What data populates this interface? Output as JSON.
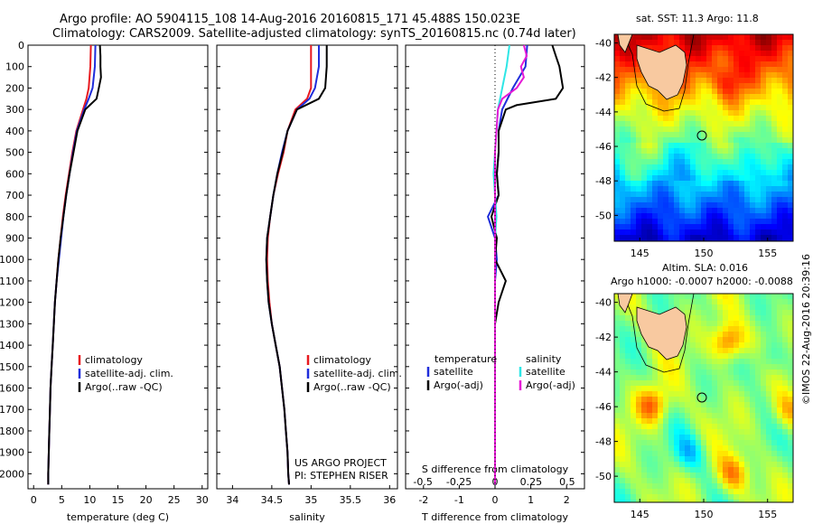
{
  "header": {
    "line1": "Argo profile: AO 5904115_108 14-Aug-2016 20160815_171 45.488S 150.023E",
    "line2": "Climatology: CARS2009. Satellite-adjusted climatology: synTS_20160815.nc (0.74d later)"
  },
  "credit": "©IMOS 22-Aug-2016 20:39:16",
  "colors": {
    "climatology": "#e8191f",
    "satellite": "#1f2ddb",
    "argo": "#000000",
    "sat_s": "#2ee6e6",
    "argo_s": "#e619d6"
  },
  "chart_data": [
    {
      "type": "line",
      "name": "temperature-profile",
      "xlabel": "temperature (deg C)",
      "ylabel": "",
      "xlim": [
        -1,
        31
      ],
      "ylim": [
        2070,
        0
      ],
      "xticks": [
        "0",
        "5",
        "10",
        "15",
        "20",
        "25",
        "30"
      ],
      "yticks": [
        "0",
        "100",
        "200",
        "300",
        "400",
        "500",
        "600",
        "700",
        "800",
        "900",
        "1000",
        "1100",
        "1200",
        "1300",
        "1400",
        "1500",
        "1600",
        "1700",
        "1800",
        "1900",
        "2000"
      ],
      "legend": [
        "climatology",
        "satellite-adj. clim.",
        "Argo(..raw -QC)"
      ],
      "series": [
        {
          "name": "climatology",
          "depth": [
            0,
            100,
            200,
            250,
            300,
            400,
            500,
            600,
            700,
            800,
            900,
            1000,
            1100,
            1200,
            1300,
            1400,
            1500,
            1600,
            1700,
            1800,
            1900,
            2000,
            2050
          ],
          "values": [
            10.2,
            10.1,
            9.8,
            9.4,
            8.8,
            7.6,
            6.9,
            6.3,
            5.7,
            5.2,
            4.8,
            4.4,
            4.1,
            3.8,
            3.6,
            3.4,
            3.2,
            3.0,
            2.9,
            2.8,
            2.7,
            2.6,
            2.6
          ]
        },
        {
          "name": "satellite-adj. clim.",
          "depth": [
            0,
            100,
            200,
            250,
            300,
            400,
            500,
            600,
            700,
            800,
            900,
            1000,
            1100,
            1200,
            1300,
            1400,
            1500,
            1600,
            1700,
            1800,
            1900,
            2000,
            2050
          ],
          "values": [
            11.0,
            10.9,
            10.5,
            9.8,
            9.0,
            7.7,
            7.0,
            6.4,
            5.8,
            5.3,
            4.9,
            4.5,
            4.1,
            3.8,
            3.6,
            3.4,
            3.2,
            3.0,
            2.9,
            2.8,
            2.7,
            2.6,
            2.6
          ]
        },
        {
          "name": "Argo(..raw -QC)",
          "depth": [
            0,
            50,
            100,
            150,
            200,
            250,
            280,
            300,
            400,
            500,
            600,
            700,
            800,
            900,
            1000,
            1100,
            1200,
            1300,
            1400,
            1500,
            1600,
            1700,
            1800,
            1900,
            2000,
            2050
          ],
          "values": [
            11.8,
            11.9,
            11.9,
            12.0,
            11.6,
            11.2,
            10.0,
            9.2,
            7.8,
            7.1,
            6.4,
            5.8,
            5.3,
            4.8,
            4.4,
            4.1,
            3.8,
            3.6,
            3.4,
            3.2,
            3.0,
            2.9,
            2.8,
            2.7,
            2.6,
            2.6
          ]
        }
      ]
    },
    {
      "type": "line",
      "name": "salinity-profile",
      "xlabel": "salinity",
      "xlim": [
        33.8,
        36.1
      ],
      "ylim": [
        2070,
        0
      ],
      "xticks": [
        "34",
        "34.5",
        "35",
        "35.5",
        "36"
      ],
      "legend": [
        "climatology",
        "satellite-adj. clim.",
        "Argo(..raw -QC)"
      ],
      "annotation": [
        "US ARGO PROJECT",
        "PI: STEPHEN RISER"
      ],
      "series": [
        {
          "name": "climatology",
          "depth": [
            0,
            100,
            200,
            250,
            300,
            400,
            500,
            600,
            700,
            800,
            900,
            1000,
            1100,
            1200,
            1300,
            1400,
            1500,
            1600,
            1700,
            1800,
            1900,
            2000,
            2050
          ],
          "values": [
            35.0,
            35.0,
            35.0,
            34.95,
            34.8,
            34.7,
            34.65,
            34.58,
            34.52,
            34.48,
            34.45,
            34.44,
            34.45,
            34.47,
            34.5,
            34.55,
            34.6,
            34.63,
            34.66,
            34.68,
            34.7,
            34.71,
            34.72
          ]
        },
        {
          "name": "satellite-adj. clim.",
          "depth": [
            0,
            100,
            200,
            250,
            300,
            400,
            500,
            600,
            700,
            800,
            900,
            1000,
            1100,
            1200,
            1300,
            1400,
            1500,
            1600,
            1700,
            1800,
            1900,
            2000,
            2050
          ],
          "values": [
            35.1,
            35.1,
            35.05,
            34.98,
            34.82,
            34.7,
            34.63,
            34.57,
            34.52,
            34.48,
            34.44,
            34.43,
            34.44,
            34.46,
            34.5,
            34.55,
            34.6,
            34.63,
            34.66,
            34.68,
            34.7,
            34.71,
            34.72
          ]
        },
        {
          "name": "Argo(..raw -QC)",
          "depth": [
            0,
            100,
            200,
            250,
            300,
            400,
            500,
            600,
            700,
            800,
            900,
            1000,
            1100,
            1200,
            1300,
            1400,
            1500,
            1600,
            1700,
            1800,
            1900,
            2000,
            2050
          ],
          "values": [
            35.2,
            35.2,
            35.18,
            35.1,
            34.82,
            34.7,
            34.64,
            34.57,
            34.52,
            34.48,
            34.44,
            34.43,
            34.44,
            34.46,
            34.5,
            34.55,
            34.6,
            34.63,
            34.66,
            34.68,
            34.7,
            34.71,
            34.72
          ]
        }
      ]
    },
    {
      "type": "line",
      "name": "difference-profile",
      "xlabel": "T difference from climatology",
      "xlabel_top": "S difference from climatology",
      "xlim": [
        -2.5,
        2.5
      ],
      "ylim": [
        2070,
        0
      ],
      "xticks": [
        "-2",
        "-1",
        "0",
        "1",
        "2"
      ],
      "xticks_top": [
        "-0.5",
        "-0.25",
        "0",
        "0.25",
        "0.5"
      ],
      "legend_headers": [
        "temperature",
        "salinity"
      ],
      "legend": [
        "satellite",
        "Argo(-adj)",
        "satellite",
        "Argo(-adj)"
      ],
      "series": [
        {
          "name": "T satellite",
          "depth": [
            0,
            100,
            200,
            300,
            400,
            500,
            600,
            700,
            800,
            900,
            1000,
            1100,
            1200,
            1400,
            1600,
            1800,
            2050
          ],
          "values": [
            0.9,
            0.85,
            0.5,
            0.2,
            0.1,
            0.1,
            0.05,
            0.1,
            -0.2,
            0.0,
            0.05,
            0.0,
            0.0,
            0.0,
            0.0,
            0.0,
            0.0
          ]
        },
        {
          "name": "T Argo(-adj)",
          "depth": [
            0,
            50,
            100,
            200,
            250,
            280,
            300,
            400,
            500,
            600,
            700,
            800,
            900,
            1000,
            1100,
            1200,
            1300,
            1400,
            1600,
            1800,
            2050
          ],
          "values": [
            1.6,
            1.7,
            1.8,
            1.9,
            1.7,
            0.6,
            0.3,
            0.1,
            0.1,
            0.05,
            0.1,
            -0.1,
            0.05,
            0.0,
            0.3,
            0.1,
            0.0,
            0.0,
            0.0,
            0.0,
            0.0
          ]
        },
        {
          "name": "S satellite",
          "depth": [
            0,
            100,
            200,
            300,
            400,
            500,
            600,
            700,
            800,
            900,
            1000,
            1200,
            1400,
            1600,
            1800,
            2050
          ],
          "values": [
            0.1,
            0.08,
            0.05,
            0.02,
            0.01,
            0.0,
            -0.01,
            0.0,
            0.01,
            0.0,
            0.0,
            0.0,
            0.0,
            0.0,
            0.0,
            0.0
          ]
        },
        {
          "name": "S Argo(-adj)",
          "depth": [
            0,
            50,
            100,
            150,
            200,
            250,
            300,
            400,
            500,
            700,
            900,
            1100,
            1300,
            1500,
            1800,
            2050
          ],
          "values": [
            0.2,
            0.22,
            0.18,
            0.2,
            0.15,
            0.05,
            0.02,
            0.01,
            0.0,
            0.0,
            0.0,
            0.0,
            0.0,
            0.0,
            0.0,
            0.0
          ]
        }
      ]
    },
    {
      "type": "heatmap",
      "name": "sst-map",
      "title": "sat. SST: 11.3 Argo: 11.8",
      "xticks": [
        "145",
        "150",
        "155"
      ],
      "yticks": [
        "-40",
        "-42",
        "-44",
        "-46",
        "-48",
        "-50"
      ],
      "xlim": [
        143,
        157
      ],
      "ylim": [
        -51.5,
        -39.5
      ],
      "marker": [
        150.023,
        -45.488
      ]
    },
    {
      "type": "heatmap",
      "name": "sla-map",
      "title": "Altim. SLA: 0.016",
      "subtitle": "Argo h1000: -0.0007 h2000: -0.0088",
      "xticks": [
        "145",
        "150",
        "155"
      ],
      "yticks": [
        "-40",
        "-42",
        "-44",
        "-46",
        "-48",
        "-50"
      ],
      "xlim": [
        143,
        157
      ],
      "ylim": [
        -51.5,
        -39.5
      ],
      "marker": [
        150.023,
        -45.488
      ]
    }
  ]
}
